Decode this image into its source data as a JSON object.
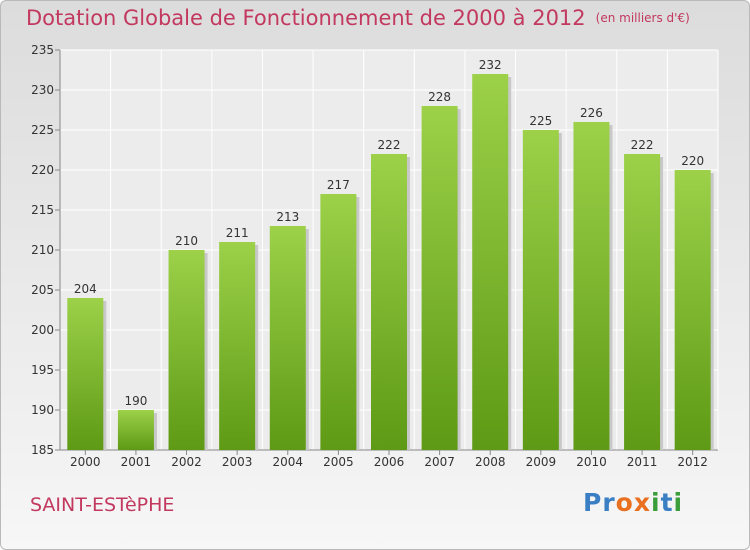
{
  "title": "Dotation Globale de Fonctionnement de 2000 à 2012",
  "subtitle": "(en milliers d'€)",
  "commune": "SAINT-ESTèPHE",
  "logo": {
    "text": "Proxiti",
    "letters": [
      "P",
      "r",
      "o",
      "x",
      "i",
      "t",
      "i"
    ],
    "colors": [
      "#3a7fc4",
      "#3a7fc4",
      "#e8701f",
      "#e8701f",
      "#3a9e3a",
      "#3a7fc4",
      "#3a9e3a"
    ]
  },
  "colors": {
    "accent": "#c2385e",
    "bar_top": "#9cd149",
    "bar_bottom": "#5e9a15"
  },
  "chart_data": {
    "type": "bar",
    "categories": [
      "2000",
      "2001",
      "2002",
      "2003",
      "2004",
      "2005",
      "2006",
      "2007",
      "2008",
      "2009",
      "2010",
      "2011",
      "2012"
    ],
    "values": [
      204,
      190,
      210,
      211,
      213,
      217,
      222,
      228,
      232,
      225,
      226,
      222,
      220
    ],
    "ylim": [
      185,
      235
    ],
    "yticks": [
      185,
      190,
      195,
      200,
      205,
      210,
      215,
      220,
      225,
      230,
      235
    ],
    "grid": true
  }
}
